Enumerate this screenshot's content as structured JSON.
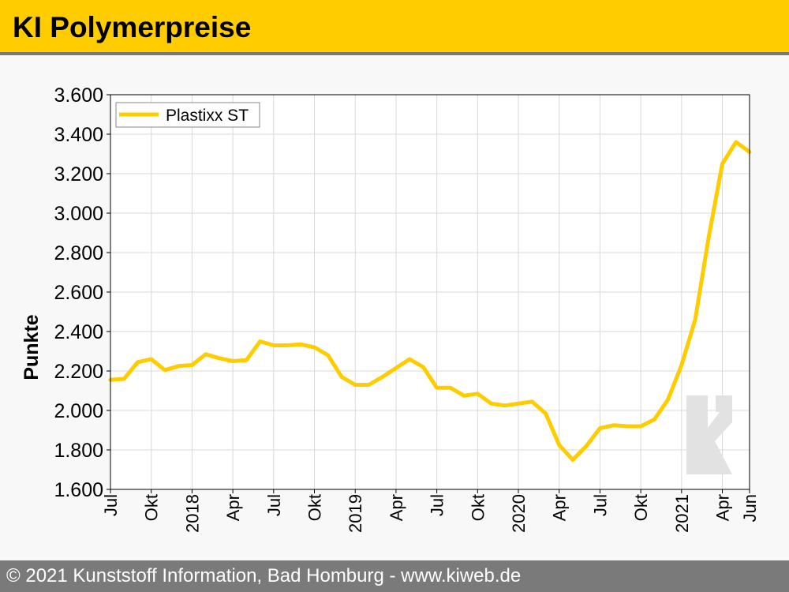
{
  "header": {
    "title": "KI Polymerpreise"
  },
  "footer": {
    "text": "© 2021 Kunststoff Information, Bad Homburg - www.kiweb.de"
  },
  "colors": {
    "accent": "#ffcc00",
    "line": "#ffcc00",
    "grid": "#d9d9d9",
    "watermark": "#e2e2e2"
  },
  "watermark": {
    "icon": "ki-logo-icon"
  },
  "chart_data": {
    "type": "line",
    "ylabel": "Punkte",
    "ylim": [
      1600,
      3600
    ],
    "yticks": [
      1600,
      1800,
      2000,
      2200,
      2400,
      2600,
      2800,
      3000,
      3200,
      3400,
      3600
    ],
    "ytick_labels": [
      "1.600",
      "1.800",
      "2.000",
      "2.200",
      "2.400",
      "2.600",
      "2.800",
      "3.000",
      "3.200",
      "3.400",
      "3.600"
    ],
    "xlim": [
      "2017-07",
      "2021-06"
    ],
    "xticks": [
      {
        "x": "2017-07",
        "label": "Jul"
      },
      {
        "x": "2017-10",
        "label": "Okt"
      },
      {
        "x": "2018-01",
        "label": "2018"
      },
      {
        "x": "2018-04",
        "label": "Apr"
      },
      {
        "x": "2018-07",
        "label": "Jul"
      },
      {
        "x": "2018-10",
        "label": "Okt"
      },
      {
        "x": "2019-01",
        "label": "2019"
      },
      {
        "x": "2019-04",
        "label": "Apr"
      },
      {
        "x": "2019-07",
        "label": "Jul"
      },
      {
        "x": "2019-10",
        "label": "Okt"
      },
      {
        "x": "2020-01",
        "label": "2020"
      },
      {
        "x": "2020-04",
        "label": "Apr"
      },
      {
        "x": "2020-07",
        "label": "Jul"
      },
      {
        "x": "2020-10",
        "label": "Okt"
      },
      {
        "x": "2021-01",
        "label": "2021"
      },
      {
        "x": "2021-04",
        "label": "Apr"
      },
      {
        "x": "2021-06",
        "label": "Jun"
      }
    ],
    "grid": true,
    "legend": "top-left",
    "series": [
      {
        "name": "Plastixx ST",
        "x": [
          "2017-07",
          "2017-08",
          "2017-09",
          "2017-10",
          "2017-11",
          "2017-12",
          "2018-01",
          "2018-02",
          "2018-03",
          "2018-04",
          "2018-05",
          "2018-06",
          "2018-07",
          "2018-08",
          "2018-09",
          "2018-10",
          "2018-11",
          "2018-12",
          "2019-01",
          "2019-02",
          "2019-03",
          "2019-04",
          "2019-05",
          "2019-06",
          "2019-07",
          "2019-08",
          "2019-09",
          "2019-10",
          "2019-11",
          "2019-12",
          "2020-01",
          "2020-02",
          "2020-03",
          "2020-04",
          "2020-05",
          "2020-06",
          "2020-07",
          "2020-08",
          "2020-09",
          "2020-10",
          "2020-11",
          "2020-12",
          "2021-01",
          "2021-02",
          "2021-03",
          "2021-04",
          "2021-05",
          "2021-06"
        ],
        "values": [
          2155,
          2160,
          2245,
          2260,
          2205,
          2225,
          2230,
          2285,
          2265,
          2250,
          2255,
          2350,
          2330,
          2330,
          2335,
          2320,
          2280,
          2170,
          2130,
          2130,
          2170,
          2215,
          2260,
          2220,
          2115,
          2115,
          2075,
          2085,
          2035,
          2025,
          2035,
          2045,
          1985,
          1825,
          1750,
          1820,
          1910,
          1925,
          1920,
          1920,
          1955,
          2055,
          2230,
          2460,
          2880,
          3250,
          3360,
          3310
        ]
      }
    ]
  }
}
